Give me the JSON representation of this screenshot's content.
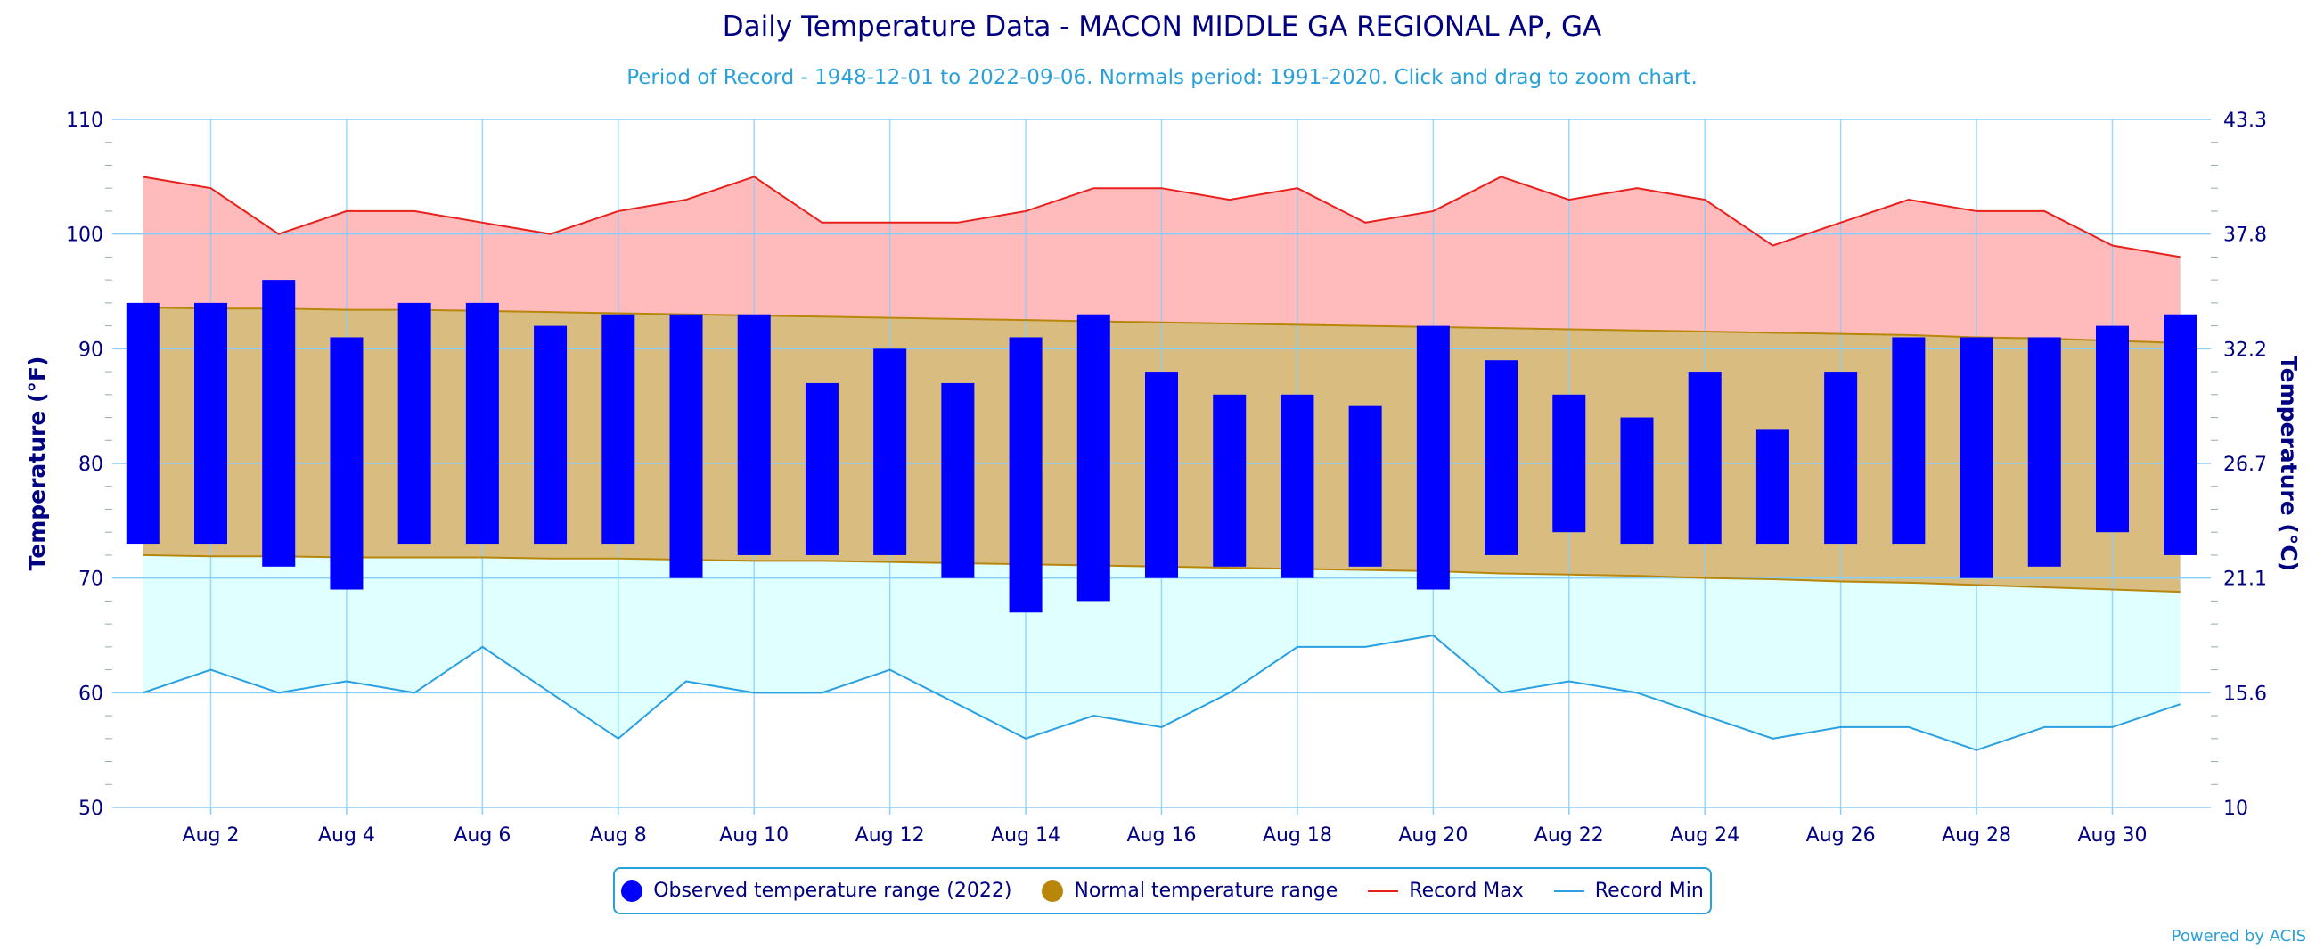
{
  "title": "Daily Temperature Data - MACON MIDDLE GA REGIONAL AP, GA",
  "subtitle": "Period of Record - 1948-12-01 to 2022-09-06. Normals period: 1991-2020. Click and drag to zoom chart.",
  "credit": "Powered by ACIS",
  "colors": {
    "observed": "#0000ff",
    "normal_fill": "#d9bd80",
    "normal_line": "#b8860b",
    "record_max_fill": "#ffbbbb",
    "record_max_line": "#e8201c",
    "record_min_fill": "#e0ffff",
    "record_min_line": "#2aa0e0",
    "grid": "#87cefa",
    "axis_text": "#000080"
  },
  "legend": [
    {
      "label": "Observed temperature range (2022)",
      "icon": "blue-circle-icon"
    },
    {
      "label": "Normal temperature range",
      "icon": "gold-circle-icon"
    },
    {
      "label": "Record Max",
      "icon": "red-line-icon"
    },
    {
      "label": "Record Min",
      "icon": "blue-line-icon"
    }
  ],
  "chart_data": {
    "type": "bar",
    "xlabel": "",
    "ylabel": "Temperature (°F)",
    "ylabel_right": "Temperature (°C)",
    "ylim": [
      50,
      110
    ],
    "y_ticks": [
      "50",
      "60",
      "70",
      "80",
      "90",
      "100",
      "110"
    ],
    "y_ticks_right": [
      "10",
      "15.6",
      "21.1",
      "26.7",
      "32.2",
      "37.8",
      "43.3"
    ],
    "x_tick_labels": [
      "Aug 2",
      "Aug 4",
      "Aug 6",
      "Aug 8",
      "Aug 10",
      "Aug 12",
      "Aug 14",
      "Aug 16",
      "Aug 18",
      "Aug 20",
      "Aug 22",
      "Aug 24",
      "Aug 26",
      "Aug 28",
      "Aug 30"
    ],
    "x_tick_days": [
      2,
      4,
      6,
      8,
      10,
      12,
      14,
      16,
      18,
      20,
      22,
      24,
      26,
      28,
      30
    ],
    "days": [
      1,
      2,
      3,
      4,
      5,
      6,
      7,
      8,
      9,
      10,
      11,
      12,
      13,
      14,
      15,
      16,
      17,
      18,
      19,
      20,
      21,
      22,
      23,
      24,
      25,
      26,
      27,
      28,
      29,
      30,
      31
    ],
    "grid": true,
    "legend_position": "bottom",
    "series": [
      {
        "name": "Observed temperature range (2022)",
        "high": [
          94,
          94,
          96,
          91,
          94,
          94,
          92,
          93,
          93,
          93,
          87,
          90,
          87,
          91,
          93,
          88,
          86,
          86,
          85,
          92,
          89,
          86,
          84,
          88,
          83,
          88,
          91,
          91,
          91,
          92,
          93
        ],
        "low": [
          73,
          73,
          71,
          69,
          73,
          73,
          73,
          73,
          70,
          72,
          72,
          72,
          70,
          67,
          68,
          70,
          71,
          70,
          71,
          69,
          72,
          74,
          73,
          73,
          73,
          73,
          73,
          70,
          71,
          74,
          72
        ]
      },
      {
        "name": "Normal temperature range",
        "high": [
          93.6,
          93.5,
          93.5,
          93.4,
          93.4,
          93.3,
          93.2,
          93.1,
          93.0,
          92.9,
          92.8,
          92.7,
          92.6,
          92.5,
          92.4,
          92.3,
          92.2,
          92.1,
          92.0,
          91.9,
          91.8,
          91.7,
          91.6,
          91.5,
          91.4,
          91.3,
          91.2,
          91.0,
          90.9,
          90.7,
          90.5
        ],
        "low": [
          72.0,
          71.9,
          71.9,
          71.8,
          71.8,
          71.8,
          71.7,
          71.7,
          71.6,
          71.5,
          71.5,
          71.4,
          71.3,
          71.2,
          71.1,
          71.0,
          70.9,
          70.8,
          70.7,
          70.6,
          70.4,
          70.3,
          70.2,
          70.0,
          69.9,
          69.7,
          69.6,
          69.4,
          69.2,
          69.0,
          68.8
        ]
      },
      {
        "name": "Record Max",
        "values": [
          105,
          104,
          100,
          102,
          102,
          101,
          100,
          102,
          103,
          105,
          101,
          101,
          101,
          102,
          104,
          104,
          103,
          104,
          101,
          102,
          105,
          103,
          104,
          103,
          99,
          101,
          103,
          102,
          102,
          99,
          98
        ]
      },
      {
        "name": "Record Min",
        "values": [
          60,
          62,
          60,
          61,
          60,
          64,
          60,
          56,
          61,
          60,
          60,
          62,
          59,
          56,
          58,
          57,
          60,
          64,
          64,
          65,
          60,
          61,
          60,
          58,
          56,
          57,
          57,
          55,
          57,
          57,
          59
        ]
      }
    ]
  }
}
